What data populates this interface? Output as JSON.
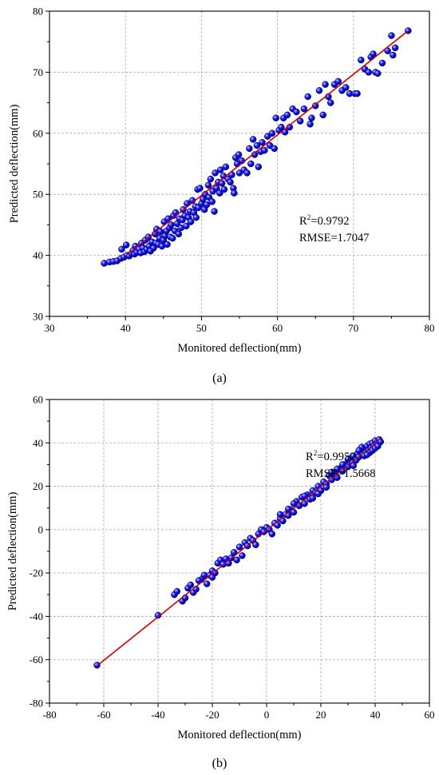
{
  "chart_data": [
    {
      "type": "scatter",
      "caption": "(a)",
      "xlabel": "Monitored deflection(mm)",
      "ylabel": "Predicted deflection(mm)",
      "xlim": [
        30,
        80
      ],
      "ylim": [
        30,
        80
      ],
      "xticks": [
        30,
        40,
        50,
        60,
        70,
        80
      ],
      "yticks": [
        30,
        40,
        50,
        60,
        70,
        80
      ],
      "grid": true,
      "annotation": {
        "r2_prefix": "R",
        "r2_sup": "2",
        "r2_value": "=0.9792",
        "rmse": "RMSE=1.7047",
        "position": "right-middle"
      },
      "fit_line": {
        "color": "#e00000",
        "x": [
          40,
          77.2
        ],
        "y": [
          39.9,
          76.8
        ]
      },
      "marker_color": "#1a1aff",
      "points": [
        [
          37.2,
          38.7
        ],
        [
          37.9,
          38.9
        ],
        [
          38.4,
          39.0
        ],
        [
          38.9,
          39.1
        ],
        [
          39.4,
          39.5
        ],
        [
          39.5,
          41.0
        ],
        [
          39.8,
          39.7
        ],
        [
          40.1,
          41.7
        ],
        [
          40.2,
          40.0
        ],
        [
          40.5,
          39.9
        ],
        [
          40.8,
          40.3
        ],
        [
          41.0,
          40.8
        ],
        [
          41.2,
          40.2
        ],
        [
          41.3,
          41.5
        ],
        [
          41.5,
          40.5
        ],
        [
          41.8,
          41.0
        ],
        [
          42.0,
          40.4
        ],
        [
          42.1,
          42.0
        ],
        [
          42.3,
          41.2
        ],
        [
          42.5,
          40.6
        ],
        [
          42.6,
          42.5
        ],
        [
          42.8,
          41.0
        ],
        [
          43.0,
          43.0
        ],
        [
          43.1,
          41.5
        ],
        [
          43.3,
          40.7
        ],
        [
          43.5,
          42.2
        ],
        [
          43.7,
          41.2
        ],
        [
          43.9,
          43.5
        ],
        [
          44.0,
          42.0
        ],
        [
          44.1,
          44.3
        ],
        [
          44.3,
          41.8
        ],
        [
          44.5,
          42.8
        ],
        [
          44.6,
          43.9
        ],
        [
          44.8,
          41.5
        ],
        [
          45.0,
          42.5
        ],
        [
          45.1,
          45.5
        ],
        [
          45.2,
          43.2
        ],
        [
          45.4,
          44.0
        ],
        [
          45.5,
          41.8
        ],
        [
          45.6,
          46.0
        ],
        [
          45.8,
          44.5
        ],
        [
          45.9,
          43.0
        ],
        [
          46.0,
          45.0
        ],
        [
          46.2,
          42.8
        ],
        [
          46.3,
          46.5
        ],
        [
          46.5,
          44.0
        ],
        [
          46.6,
          47.0
        ],
        [
          46.8,
          45.2
        ],
        [
          47.0,
          43.5
        ],
        [
          47.1,
          46.0
        ],
        [
          47.3,
          44.5
        ],
        [
          47.5,
          45.8
        ],
        [
          47.6,
          47.5
        ],
        [
          47.8,
          46.5
        ],
        [
          48.0,
          44.8
        ],
        [
          48.1,
          48.5
        ],
        [
          48.3,
          46.2
        ],
        [
          48.5,
          47.2
        ],
        [
          48.6,
          45.5
        ],
        [
          48.8,
          49.0
        ],
        [
          49.0,
          47.0
        ],
        [
          49.2,
          48.0
        ],
        [
          49.3,
          46.2
        ],
        [
          49.5,
          50.8
        ],
        [
          49.6,
          47.8
        ],
        [
          49.8,
          51.0
        ],
        [
          50.0,
          48.5
        ],
        [
          50.2,
          49.2
        ],
        [
          50.4,
          47.5
        ],
        [
          50.5,
          50.0
        ],
        [
          50.7,
          48.3
        ],
        [
          50.9,
          51.5
        ],
        [
          51.0,
          49.5
        ],
        [
          51.2,
          52.5
        ],
        [
          51.4,
          48.8
        ],
        [
          51.5,
          50.5
        ],
        [
          51.7,
          47.2
        ],
        [
          51.8,
          53.5
        ],
        [
          52.0,
          51.0
        ],
        [
          52.2,
          52.0
        ],
        [
          52.4,
          50.2
        ],
        [
          52.5,
          54.0
        ],
        [
          52.7,
          51.8
        ],
        [
          52.9,
          53.0
        ],
        [
          53.0,
          50.8
        ],
        [
          53.2,
          54.5
        ],
        [
          53.5,
          52.5
        ],
        [
          53.8,
          52.0
        ],
        [
          54.0,
          53.2
        ],
        [
          54.2,
          51.0
        ],
        [
          54.3,
          50.2
        ],
        [
          54.5,
          56.0
        ],
        [
          54.7,
          55.0
        ],
        [
          54.9,
          56.5
        ],
        [
          55.0,
          53.5
        ],
        [
          55.3,
          55.5
        ],
        [
          55.6,
          54.0
        ],
        [
          56.0,
          53.5
        ],
        [
          56.3,
          57.5
        ],
        [
          56.5,
          55.0
        ],
        [
          56.8,
          59.0
        ],
        [
          57.0,
          56.5
        ],
        [
          57.3,
          58.0
        ],
        [
          57.5,
          54.5
        ],
        [
          57.8,
          57.0
        ],
        [
          58.0,
          58.5
        ],
        [
          58.3,
          57.2
        ],
        [
          58.7,
          59.5
        ],
        [
          59.0,
          58.0
        ],
        [
          59.3,
          60.0
        ],
        [
          59.6,
          57.5
        ],
        [
          59.8,
          62.5
        ],
        [
          60.2,
          60.5
        ],
        [
          60.5,
          61.0
        ],
        [
          60.8,
          62.5
        ],
        [
          61.0,
          60.2
        ],
        [
          61.3,
          63.0
        ],
        [
          61.6,
          61.0
        ],
        [
          62.0,
          64.0
        ],
        [
          62.5,
          63.5
        ],
        [
          63.0,
          62.0
        ],
        [
          63.5,
          64.0
        ],
        [
          64.0,
          66.0
        ],
        [
          64.3,
          61.5
        ],
        [
          64.5,
          62.5
        ],
        [
          65.0,
          64.5
        ],
        [
          65.5,
          67.0
        ],
        [
          66.0,
          63.0
        ],
        [
          66.3,
          68.0
        ],
        [
          66.7,
          66.0
        ],
        [
          67.0,
          65.0
        ],
        [
          67.5,
          68.0
        ],
        [
          68.0,
          68.5
        ],
        [
          68.5,
          67.0
        ],
        [
          69.0,
          67.5
        ],
        [
          69.5,
          66.5
        ],
        [
          70.2,
          66.5
        ],
        [
          70.5,
          66.5
        ],
        [
          71.0,
          72.0
        ],
        [
          71.5,
          70.5
        ],
        [
          72.0,
          70.0
        ],
        [
          72.3,
          72.5
        ],
        [
          72.6,
          73.0
        ],
        [
          72.9,
          70.0
        ],
        [
          73.2,
          69.8
        ],
        [
          73.8,
          71.5
        ],
        [
          74.5,
          73.5
        ],
        [
          75.0,
          76.0
        ],
        [
          75.5,
          74.0
        ],
        [
          75.2,
          72.8
        ],
        [
          77.2,
          76.8
        ]
      ]
    },
    {
      "type": "scatter",
      "caption": "(b)",
      "xlabel": "Monitored deflection(mm)",
      "ylabel": "Predicted deflection(mm)",
      "xlim": [
        -80,
        60
      ],
      "ylim": [
        -80,
        60
      ],
      "xticks": [
        -80,
        -60,
        -40,
        -20,
        0,
        20,
        40,
        60
      ],
      "yticks": [
        -80,
        -60,
        -40,
        -20,
        0,
        20,
        40,
        60
      ],
      "grid": true,
      "annotation": {
        "r2_prefix": "R",
        "r2_sup": "2",
        "r2_value": "=0.9952",
        "rmse": "RMSE=1.5668",
        "position": "bottom-right"
      },
      "fit_line": {
        "color": "#e00000",
        "x": [
          -62.5,
          42
        ],
        "y": [
          -62.8,
          41.8
        ]
      },
      "marker_color": "#1a1aff",
      "points": [
        [
          -62.5,
          -62.5
        ],
        [
          -40,
          -39.5
        ],
        [
          -34,
          -30
        ],
        [
          -33,
          -28.5
        ],
        [
          -31,
          -33
        ],
        [
          -30,
          -31.5
        ],
        [
          -29,
          -27
        ],
        [
          -28,
          -25.5
        ],
        [
          -27,
          -29
        ],
        [
          -26,
          -27.5
        ],
        [
          -24,
          -23
        ],
        [
          -23,
          -21
        ],
        [
          -22,
          -25
        ],
        [
          -21,
          -21
        ],
        [
          -20,
          -19
        ],
        [
          -19,
          -20
        ],
        [
          -18,
          -15.5
        ],
        [
          -17,
          -14
        ],
        [
          -16,
          -16
        ],
        [
          -15,
          -13.5
        ],
        [
          -14,
          -15.5
        ],
        [
          -13,
          -13
        ],
        [
          -11,
          -14
        ],
        [
          -10,
          -8
        ],
        [
          -9,
          -12
        ],
        [
          -8,
          -6
        ],
        [
          -7,
          -7.5
        ],
        [
          -6,
          -4
        ],
        [
          -5,
          -5
        ],
        [
          -4,
          -7
        ],
        [
          -3,
          -2
        ],
        [
          -2,
          0
        ],
        [
          -1,
          -1
        ],
        [
          0,
          1
        ],
        [
          1,
          0
        ],
        [
          2,
          -2
        ],
        [
          3,
          3
        ],
        [
          4,
          2
        ],
        [
          5,
          5
        ],
        [
          6,
          4
        ],
        [
          7,
          7
        ],
        [
          8,
          6.5
        ],
        [
          9,
          9
        ],
        [
          10,
          8
        ],
        [
          11,
          13
        ],
        [
          12,
          11
        ],
        [
          13,
          15
        ],
        [
          14,
          12
        ],
        [
          15,
          16
        ],
        [
          16,
          14
        ],
        [
          17,
          18
        ],
        [
          18,
          17
        ],
        [
          19,
          20
        ],
        [
          20,
          18
        ],
        [
          21,
          22
        ],
        [
          22,
          21
        ],
        [
          23,
          25
        ],
        [
          24,
          23
        ],
        [
          25,
          26
        ],
        [
          26,
          24
        ],
        [
          27,
          28
        ],
        [
          28,
          27
        ],
        [
          29,
          30
        ],
        [
          30,
          29
        ],
        [
          31,
          33
        ],
        [
          31.5,
          31
        ],
        [
          32,
          34
        ],
        [
          33,
          32
        ],
        [
          33.5,
          35
        ],
        [
          34,
          33.5
        ],
        [
          35,
          36
        ],
        [
          35.5,
          34.5
        ],
        [
          36,
          37.5
        ],
        [
          36.5,
          35.5
        ],
        [
          37,
          38.5
        ],
        [
          37.5,
          36.5
        ],
        [
          38,
          39.5
        ],
        [
          38.5,
          37.5
        ],
        [
          39,
          40
        ],
        [
          39.5,
          38.5
        ],
        [
          40,
          41
        ],
        [
          40.5,
          39.5
        ],
        [
          41,
          40.5
        ],
        [
          41.5,
          41.5
        ],
        [
          42,
          40.5
        ],
        [
          24,
          26.5
        ],
        [
          26,
          28
        ],
        [
          30,
          32.5
        ],
        [
          28,
          30
        ],
        [
          35,
          38
        ],
        [
          17,
          14.5
        ],
        [
          19,
          16.5
        ],
        [
          22,
          19.5
        ],
        [
          14,
          15.5
        ],
        [
          10,
          12
        ],
        [
          -25,
          -23.5
        ],
        [
          -20,
          -22
        ],
        [
          -12,
          -10.5
        ],
        [
          5,
          7
        ],
        [
          8,
          9.5
        ],
        [
          32,
          29.5
        ],
        [
          36,
          34
        ],
        [
          38,
          35.5
        ],
        [
          34,
          36.5
        ],
        [
          37,
          34.5
        ],
        [
          39,
          36.5
        ],
        [
          40,
          37.5
        ],
        [
          41,
          38.5
        ]
      ]
    }
  ]
}
